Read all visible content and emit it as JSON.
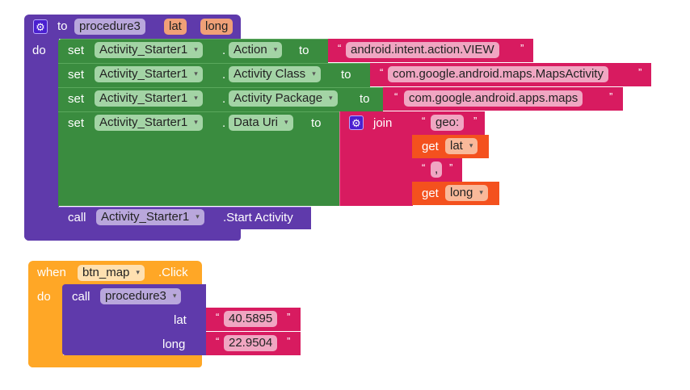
{
  "procedure": {
    "to": "to",
    "name": "procedure3",
    "params": [
      "lat",
      "long"
    ],
    "do": "do"
  },
  "sets": [
    {
      "set": "set",
      "component": "Activity_Starter1",
      "property": "Action",
      "to": "to",
      "value": "android.intent.action.VIEW"
    },
    {
      "set": "set",
      "component": "Activity_Starter1",
      "property": "Activity Class",
      "to": "to",
      "value": "com.google.android.maps.MapsActivity"
    },
    {
      "set": "set",
      "component": "Activity_Starter1",
      "property": "Activity Package",
      "to": "to",
      "value": "com.google.android.apps.maps"
    },
    {
      "set": "set",
      "component": "Activity_Starter1",
      "property": "Data Uri",
      "to": "to"
    }
  ],
  "join": {
    "label": "join",
    "text1": "geo:",
    "get1": "get",
    "var1": "lat",
    "text2": ",",
    "get2": "get",
    "var2": "long"
  },
  "call_start": {
    "call": "call",
    "component": "Activity_Starter1",
    "method": ".Start Activity"
  },
  "event": {
    "when": "when",
    "component": "btn_map",
    "event": ".Click",
    "do": "do"
  },
  "call_proc": {
    "call": "call",
    "name": "procedure3",
    "arg1": "lat",
    "val1": "40.5895",
    "arg2": "long",
    "val2": "22.9504"
  },
  "quote_open": "“",
  "quote_close": "”",
  "dot": "."
}
